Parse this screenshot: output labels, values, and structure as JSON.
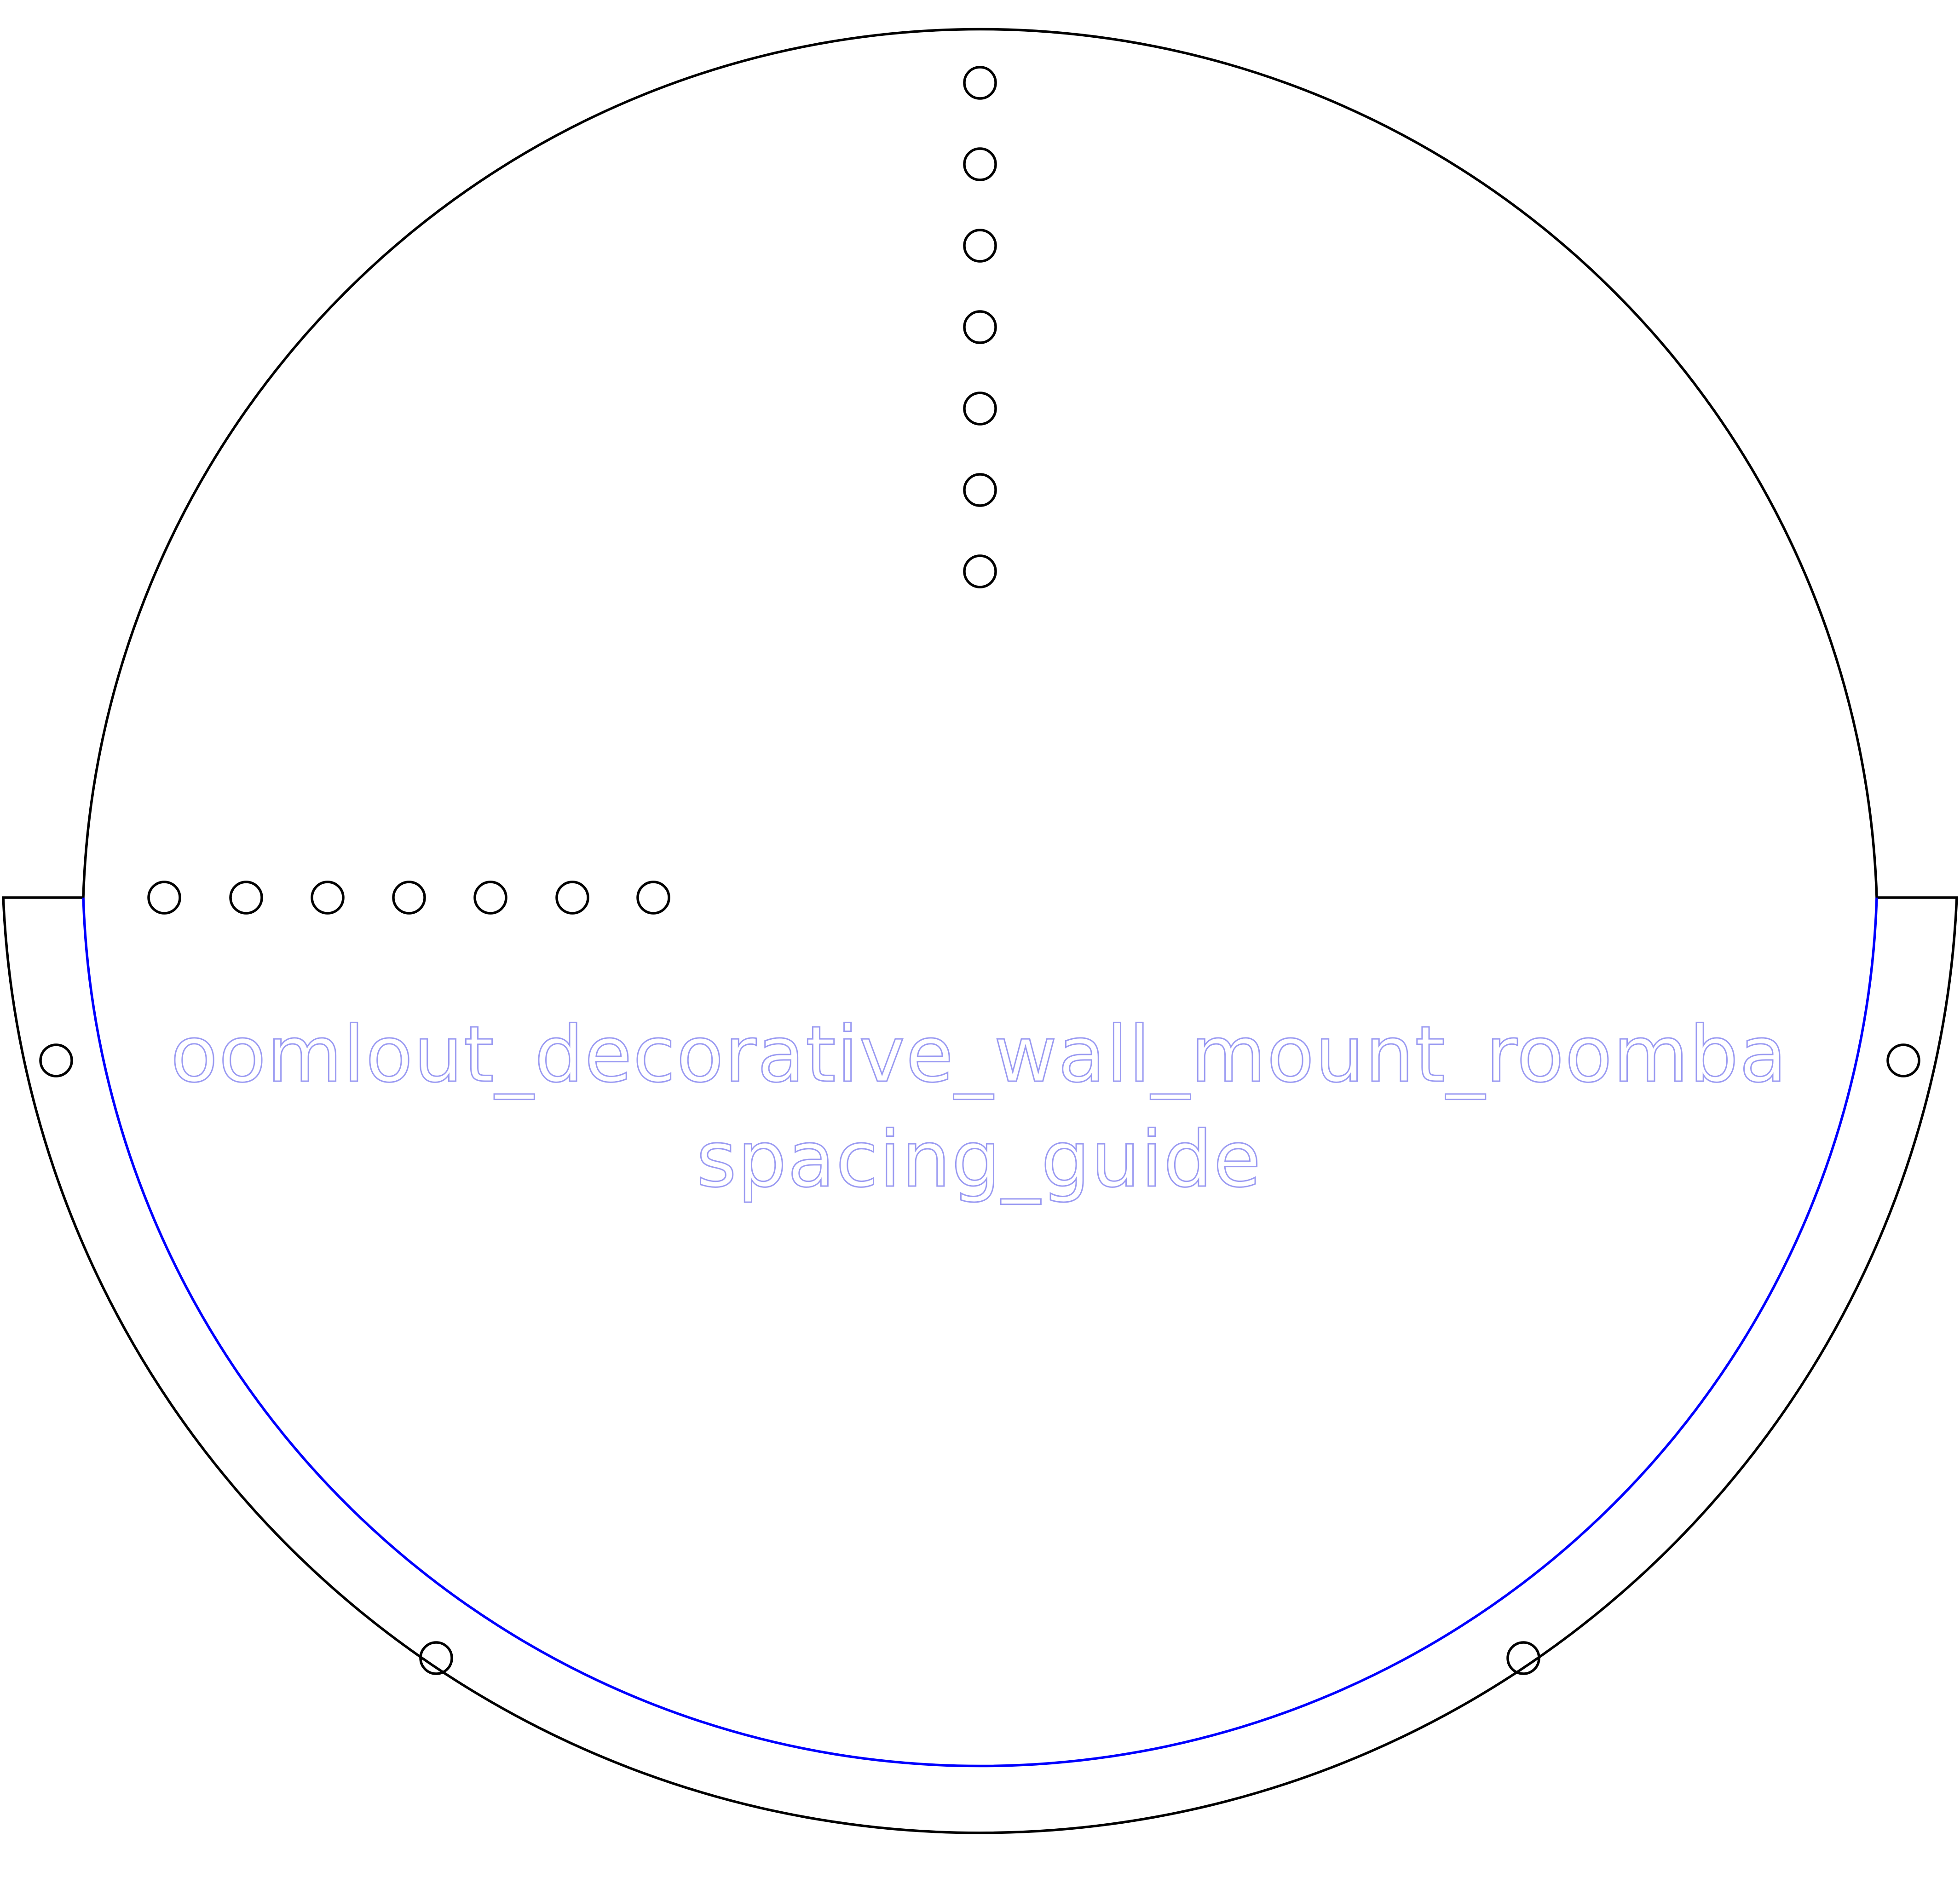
{
  "labels": {
    "line1": "oomlout_decorative_wall_mount_roomba",
    "line2": "spacing_guide"
  },
  "colors": {
    "cut_line": "#000000",
    "guide_line": "#0000ff",
    "label_outline": "#9a9af2",
    "background": "#ffffff"
  }
}
